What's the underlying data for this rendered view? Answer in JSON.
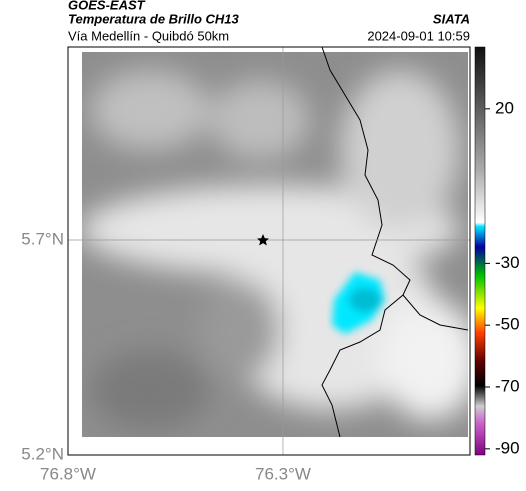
{
  "header": {
    "source": "GOES-EAST",
    "title": "Temperatura de Brillo CH13",
    "brand": "SIATA",
    "subtitle": "Vía Medellín - Quibdó 50km",
    "datetime": "2024-09-01 10:59"
  },
  "map": {
    "xlim": [
      -76.8,
      -75.865
    ],
    "ylim": [
      5.2,
      6.149
    ],
    "xticks": [
      {
        "value": -76.8,
        "label": "76.8°W"
      },
      {
        "value": -76.3,
        "label": "76.3°W"
      }
    ],
    "yticks": [
      {
        "value": 5.2,
        "label": "5.2°N"
      },
      {
        "value": 5.7,
        "label": "5.7°N"
      }
    ],
    "grid": true
  },
  "colorbar": {
    "lim": [
      -92,
      40
    ],
    "ticks": [
      20,
      -30,
      -50,
      -70,
      -90
    ]
  }
}
